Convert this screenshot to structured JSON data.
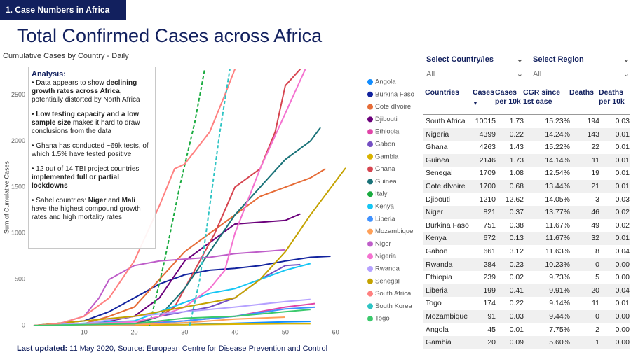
{
  "header": {
    "tab": "1. Case Numbers in Africa",
    "title": "Total Confirmed Cases across Africa"
  },
  "chart_data": {
    "type": "line",
    "title": "Cumulative Cases by Country - Daily",
    "y_label": "Sum of Cumulative Cases",
    "xlim": [
      0,
      62
    ],
    "xticks": [
      10,
      20,
      30,
      40,
      50,
      60
    ],
    "ylim": [
      0,
      2800
    ],
    "yticks": [
      0,
      500,
      1000,
      1500,
      2000,
      2500
    ],
    "grid": false,
    "series": [
      {
        "name": "Angola",
        "color": "#118DFF",
        "x": [
          0,
          30,
          40,
          50,
          55
        ],
        "values": [
          0,
          10,
          25,
          40,
          45
        ]
      },
      {
        "name": "Burkina Faso",
        "color": "#12239E",
        "x": [
          0,
          10,
          15,
          20,
          25,
          30,
          35,
          40,
          45,
          50,
          55,
          59
        ],
        "values": [
          0,
          50,
          150,
          300,
          450,
          550,
          600,
          620,
          650,
          700,
          740,
          751
        ]
      },
      {
        "name": "Cote dIvoire",
        "color": "#E66C37",
        "x": [
          0,
          10,
          15,
          20,
          25,
          30,
          35,
          40,
          45,
          50,
          55,
          58
        ],
        "values": [
          0,
          20,
          100,
          200,
          500,
          800,
          1000,
          1200,
          1400,
          1500,
          1600,
          1700
        ]
      },
      {
        "name": "Djibouti",
        "color": "#6B007B",
        "x": [
          0,
          10,
          15,
          20,
          25,
          30,
          35,
          40,
          45,
          50,
          53
        ],
        "values": [
          0,
          10,
          50,
          100,
          300,
          700,
          900,
          1100,
          1120,
          1140,
          1210
        ]
      },
      {
        "name": "Ethiopia",
        "color": "#E044A7",
        "x": [
          0,
          20,
          30,
          40,
          50,
          56
        ],
        "values": [
          0,
          20,
          50,
          100,
          200,
          239
        ]
      },
      {
        "name": "Gabon",
        "color": "#744EC2",
        "x": [
          0,
          20,
          25,
          30,
          35,
          40,
          45,
          50,
          53
        ],
        "values": [
          0,
          20,
          100,
          150,
          200,
          300,
          500,
          650,
          661
        ]
      },
      {
        "name": "Gambia",
        "color": "#D9B300",
        "x": [
          0,
          20,
          30,
          40,
          50,
          55
        ],
        "values": [
          0,
          5,
          10,
          15,
          20,
          20
        ]
      },
      {
        "name": "Ghana",
        "color": "#D64550",
        "x": [
          0,
          20,
          25,
          28,
          30,
          33,
          36,
          40,
          45,
          48,
          50,
          53
        ],
        "values": [
          0,
          20,
          100,
          200,
          400,
          700,
          1000,
          1500,
          1700,
          2100,
          2600,
          2780
        ]
      },
      {
        "name": "Guinea",
        "color": "#197278",
        "x": [
          0,
          20,
          25,
          30,
          35,
          40,
          45,
          50,
          55,
          57
        ],
        "values": [
          0,
          10,
          100,
          400,
          800,
          1200,
          1500,
          1800,
          2000,
          2146
        ]
      },
      {
        "name": "Italy",
        "color": "#1AAB40",
        "dashed": true,
        "x": [
          23,
          26,
          29,
          32,
          34
        ],
        "values": [
          0,
          700,
          1500,
          2200,
          2780
        ]
      },
      {
        "name": "Kenya",
        "color": "#15C6F4",
        "x": [
          0,
          20,
          25,
          30,
          35,
          40,
          45,
          50,
          55
        ],
        "values": [
          0,
          50,
          150,
          250,
          350,
          400,
          500,
          600,
          672
        ]
      },
      {
        "name": "Liberia",
        "color": "#4092FF",
        "x": [
          0,
          20,
          30,
          40,
          50,
          56
        ],
        "values": [
          0,
          10,
          50,
          100,
          180,
          199
        ]
      },
      {
        "name": "Mozambique",
        "color": "#FFA058",
        "x": [
          0,
          20,
          30,
          40,
          50
        ],
        "values": [
          0,
          10,
          30,
          70,
          91
        ]
      },
      {
        "name": "Niger",
        "color": "#BE5DC9",
        "x": [
          0,
          5,
          10,
          13,
          15,
          20,
          25,
          30,
          35,
          40,
          45,
          50
        ],
        "values": [
          0,
          20,
          100,
          300,
          500,
          650,
          700,
          720,
          740,
          780,
          800,
          821
        ]
      },
      {
        "name": "Nigeria",
        "color": "#F472D0",
        "x": [
          0,
          20,
          25,
          30,
          35,
          38,
          40,
          45,
          50,
          54
        ],
        "values": [
          0,
          40,
          100,
          200,
          400,
          600,
          1000,
          1700,
          2300,
          2780
        ]
      },
      {
        "name": "Rwanda",
        "color": "#B5A1FF",
        "x": [
          0,
          10,
          20,
          30,
          40,
          50,
          55
        ],
        "values": [
          0,
          20,
          100,
          150,
          200,
          260,
          284
        ]
      },
      {
        "name": "Senegal",
        "color": "#C4A200",
        "x": [
          0,
          20,
          30,
          40,
          45,
          50,
          55,
          62
        ],
        "values": [
          0,
          100,
          200,
          300,
          500,
          800,
          1200,
          1709
        ]
      },
      {
        "name": "South Africa",
        "color": "#FF8080",
        "x": [
          0,
          5,
          10,
          15,
          20,
          25,
          28,
          30,
          35,
          38,
          40
        ],
        "values": [
          0,
          20,
          100,
          300,
          700,
          1300,
          1700,
          1750,
          2100,
          2500,
          2780
        ]
      },
      {
        "name": "South Korea",
        "color": "#2EC4C4",
        "dashed": true,
        "x": [
          31,
          33,
          35,
          37,
          39
        ],
        "values": [
          0,
          500,
          1300,
          2100,
          2780
        ]
      },
      {
        "name": "Togo",
        "color": "#3BC96C",
        "x": [
          0,
          20,
          30,
          40,
          50,
          55
        ],
        "values": [
          0,
          20,
          80,
          100,
          150,
          174
        ]
      }
    ]
  },
  "analysis": {
    "heading": "Analysis",
    "paragraphs": [
      [
        {
          "text": "• Data appears to show "
        },
        {
          "text": "declining growth rates across Africa",
          "bold": true
        },
        {
          "text": ", potentially distorted by North Africa"
        }
      ],
      [
        {
          "text": "• "
        },
        {
          "text": "Low testing capacity and a low sample size",
          "bold": true
        },
        {
          "text": " makes it hard to draw conclusions from the data"
        }
      ],
      [
        {
          "text": "• Ghana has conducted ~69k tests, of which 1.5% have tested positive"
        }
      ],
      [
        {
          "text": "• 12 out of 14 TBI project countries "
        },
        {
          "text": "implemented full or partial lockdowns",
          "bold": true
        }
      ],
      [
        {
          "text": "• Sahel countries: "
        },
        {
          "text": "Niger",
          "bold": true
        },
        {
          "text": " and "
        },
        {
          "text": "Mali",
          "bold": true
        },
        {
          "text": " have the highest compound growth rates and high mortality rates"
        }
      ]
    ]
  },
  "filters": [
    {
      "label": "Select Country/ies",
      "value": "All"
    },
    {
      "label": "Select Region",
      "value": "All"
    }
  ],
  "table": {
    "columns": [
      "Countries",
      "Cases",
      "Cases per 10k",
      "CGR since 1st case",
      "Deaths",
      "Deaths per 10k"
    ],
    "rows": [
      [
        "South Africa",
        "10015",
        "1.73",
        "15.23%",
        "194",
        "0.03"
      ],
      [
        "Nigeria",
        "4399",
        "0.22",
        "14.24%",
        "143",
        "0.01"
      ],
      [
        "Ghana",
        "4263",
        "1.43",
        "15.22%",
        "22",
        "0.01"
      ],
      [
        "Guinea",
        "2146",
        "1.73",
        "14.14%",
        "11",
        "0.01"
      ],
      [
        "Senegal",
        "1709",
        "1.08",
        "12.54%",
        "19",
        "0.01"
      ],
      [
        "Cote dIvoire",
        "1700",
        "0.68",
        "13.44%",
        "21",
        "0.01"
      ],
      [
        "Djibouti",
        "1210",
        "12.62",
        "14.05%",
        "3",
        "0.03"
      ],
      [
        "Niger",
        "821",
        "0.37",
        "13.77%",
        "46",
        "0.02"
      ],
      [
        "Burkina Faso",
        "751",
        "0.38",
        "11.67%",
        "49",
        "0.02"
      ],
      [
        "Kenya",
        "672",
        "0.13",
        "11.67%",
        "32",
        "0.01"
      ],
      [
        "Gabon",
        "661",
        "3.12",
        "11.63%",
        "8",
        "0.04"
      ],
      [
        "Rwanda",
        "284",
        "0.23",
        "10.23%",
        "0",
        "0.00"
      ],
      [
        "Ethiopia",
        "239",
        "0.02",
        "9.73%",
        "5",
        "0.00"
      ],
      [
        "Liberia",
        "199",
        "0.41",
        "9.91%",
        "20",
        "0.04"
      ],
      [
        "Togo",
        "174",
        "0.22",
        "9.14%",
        "11",
        "0.01"
      ],
      [
        "Mozambique",
        "91",
        "0.03",
        "9.44%",
        "0",
        "0.00"
      ],
      [
        "Angola",
        "45",
        "0.01",
        "7.75%",
        "2",
        "0.00"
      ],
      [
        "Gambia",
        "20",
        "0.09",
        "5.60%",
        "1",
        "0.00"
      ]
    ]
  },
  "footer": {
    "label": "Last updated:",
    "text": " 11 May 2020, Source: European Centre for Disease Prevention and Control"
  }
}
